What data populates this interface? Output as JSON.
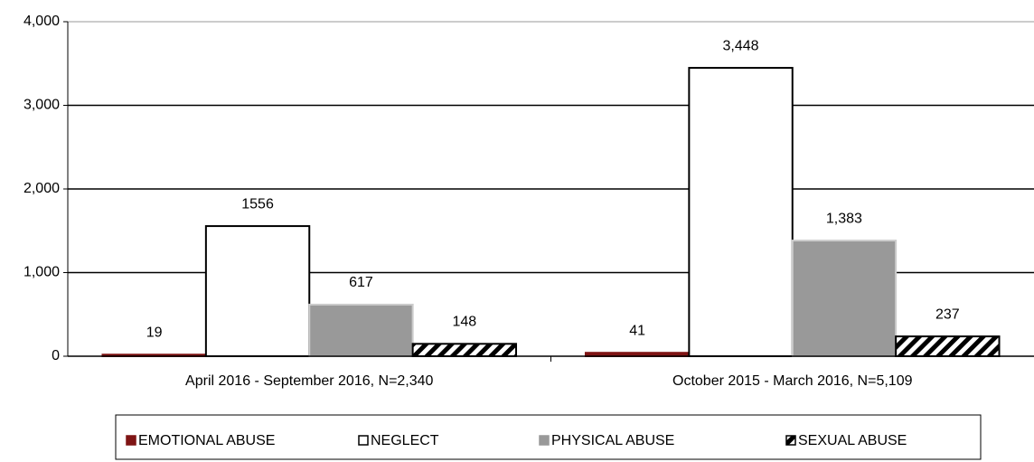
{
  "chart_data": {
    "type": "bar",
    "categories": [
      "April 2016 - September 2016, N=2,340",
      "October 2015 - March 2016, N=5,109"
    ],
    "series": [
      {
        "name": "EMOTIONAL ABUSE",
        "color": "#7f1414",
        "edgecolor": "#7f1414",
        "values": [
          19,
          41
        ],
        "value_labels": [
          "19",
          "41"
        ]
      },
      {
        "name": "NEGLECT",
        "color": "#ffffff",
        "edgecolor": "#000000",
        "values": [
          1556,
          3448
        ],
        "value_labels": [
          "1556",
          "3,448"
        ]
      },
      {
        "name": "PHYSICAL ABUSE",
        "color": "#999999",
        "edgecolor": "#cccccc",
        "values": [
          617,
          1383
        ],
        "value_labels": [
          "617",
          "1,383"
        ]
      },
      {
        "name": "SEXUAL ABUSE",
        "color": "#ffffff",
        "edgecolor": "#000000",
        "hatch": true,
        "values": [
          148,
          237
        ],
        "value_labels": [
          "148",
          "237"
        ]
      }
    ],
    "ylim": [
      0,
      4000
    ],
    "yticks": [
      0,
      {
        "value": 1000,
        "label": "1,000"
      },
      {
        "value": 2000,
        "label": "2,000"
      },
      {
        "value": 3000,
        "label": "3,000"
      },
      {
        "value": 4000,
        "label": "4,000"
      }
    ],
    "grid": true,
    "legend": "bottom"
  }
}
